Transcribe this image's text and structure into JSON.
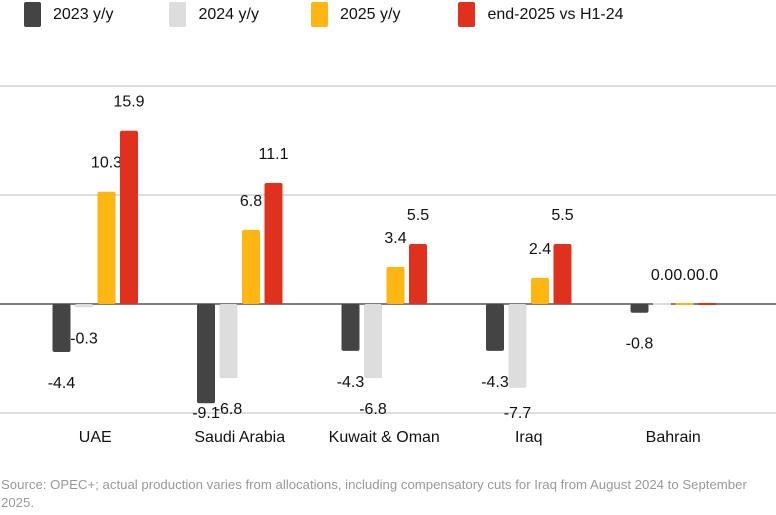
{
  "chart_data": {
    "type": "bar",
    "categories": [
      "UAE",
      "Saudi Arabia",
      "Kuwait & Oman",
      "Iraq",
      "Bahrain"
    ],
    "series": [
      {
        "name": "2023 y/y",
        "color": "#444444",
        "values": [
          -4.4,
          -9.1,
          -4.3,
          -4.3,
          -0.8
        ]
      },
      {
        "name": "2024 y/y",
        "color": "#dddddd",
        "values": [
          -0.3,
          -6.8,
          -6.8,
          -7.7,
          0.0
        ]
      },
      {
        "name": "2025 y/y",
        "color": "#ffb612",
        "values": [
          10.3,
          6.8,
          3.4,
          2.4,
          0.0
        ]
      },
      {
        "name": "end-2025 vs H1-24",
        "color": "#e0301e",
        "values": [
          15.9,
          11.1,
          5.5,
          5.5,
          0.0
        ]
      }
    ],
    "legend_labels": [
      "2023 y/y",
      "2024 y/y",
      "2025 y/y",
      "end-2025 vs H1-24"
    ],
    "ylim": [
      -10,
      20
    ],
    "gridlines": [
      -10,
      0,
      10,
      20
    ],
    "grid": true,
    "legend_placement": "top",
    "source": "Source: OPEC+; actual production varies from allocations, including compensatory cuts for Iraq from August 2024 to September 2025."
  }
}
